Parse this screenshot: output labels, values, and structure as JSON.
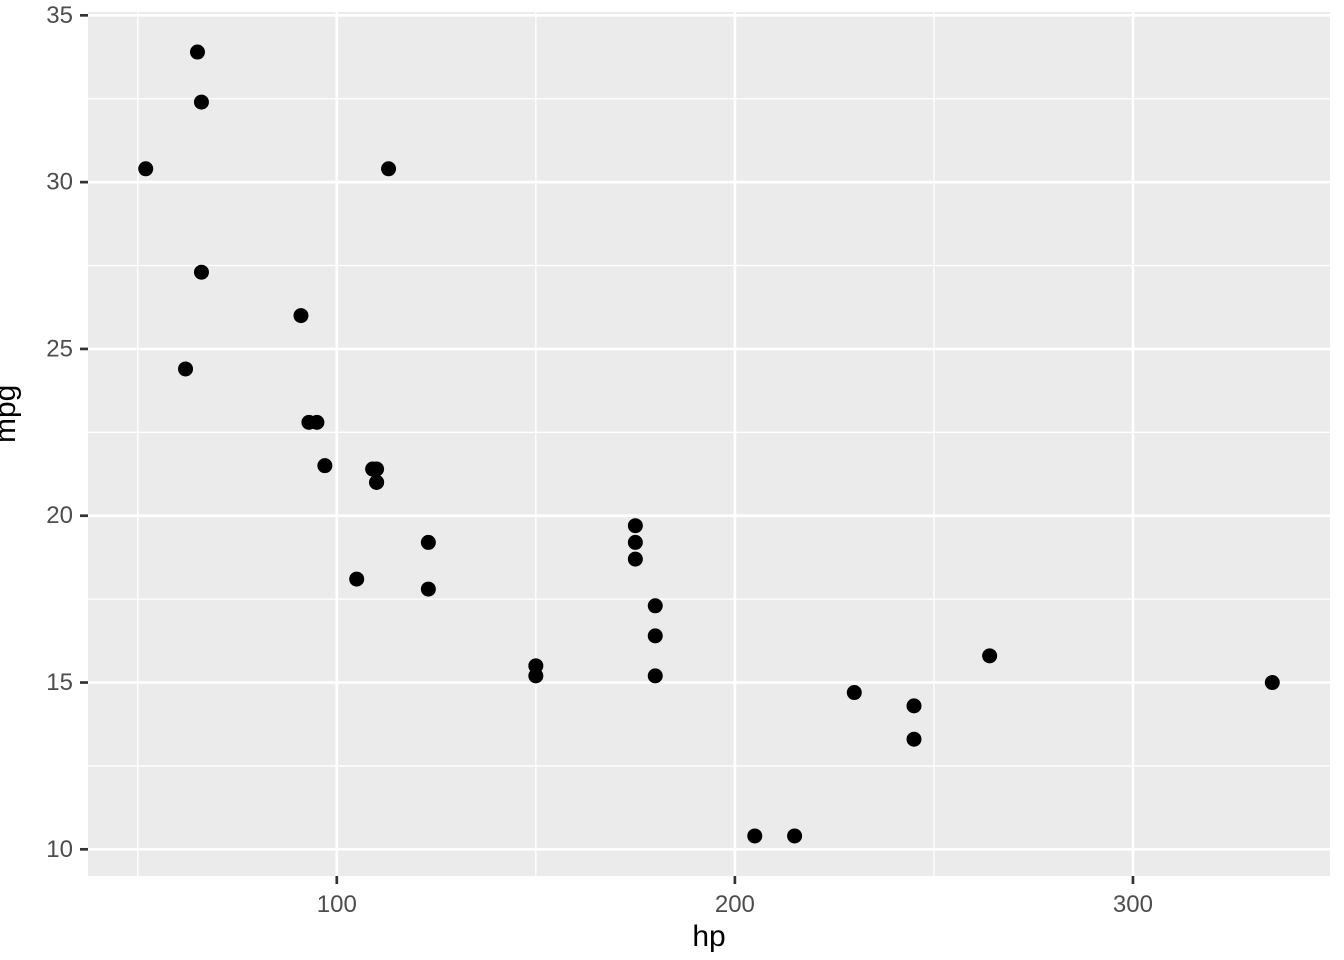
{
  "chart_data": {
    "type": "scatter",
    "title": "",
    "xlabel": "hp",
    "ylabel": "mpg",
    "x_ticks": [
      100,
      200,
      300
    ],
    "x_minor_ticks": [
      50,
      150,
      250,
      350
    ],
    "y_ticks": [
      10,
      15,
      20,
      25,
      30,
      35
    ],
    "y_minor_ticks": [
      12.5,
      17.5,
      22.5,
      27.5,
      32.5
    ],
    "xlim": [
      37.5,
      349.5
    ],
    "ylim": [
      9.2,
      35.1
    ],
    "grid": "on",
    "legend": "none",
    "points": [
      [
        110,
        21.0
      ],
      [
        110,
        21.0
      ],
      [
        93,
        22.8
      ],
      [
        110,
        21.4
      ],
      [
        175,
        18.7
      ],
      [
        105,
        18.1
      ],
      [
        245,
        14.3
      ],
      [
        62,
        24.4
      ],
      [
        95,
        22.8
      ],
      [
        123,
        19.2
      ],
      [
        123,
        17.8
      ],
      [
        180,
        16.4
      ],
      [
        180,
        17.3
      ],
      [
        180,
        15.2
      ],
      [
        205,
        10.4
      ],
      [
        215,
        10.4
      ],
      [
        230,
        14.7
      ],
      [
        66,
        32.4
      ],
      [
        52,
        30.4
      ],
      [
        65,
        33.9
      ],
      [
        97,
        21.5
      ],
      [
        150,
        15.5
      ],
      [
        150,
        15.2
      ],
      [
        245,
        13.3
      ],
      [
        175,
        19.2
      ],
      [
        66,
        27.3
      ],
      [
        91,
        26.0
      ],
      [
        113,
        30.4
      ],
      [
        264,
        15.8
      ],
      [
        175,
        19.7
      ],
      [
        335,
        15.0
      ],
      [
        109,
        21.4
      ]
    ],
    "colors": {
      "panel_background": "#EBEBEB",
      "grid_major": "#FFFFFF",
      "grid_minor": "#FFFFFF",
      "point": "#000000",
      "tick_label": "#4D4D4D",
      "tick_mark": "#333333",
      "axis_title": "#000000",
      "outer_background": "#FFFFFF"
    }
  }
}
